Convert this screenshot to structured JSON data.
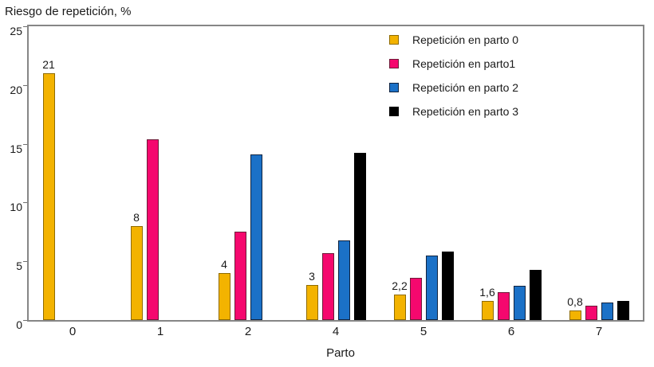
{
  "chart_data": {
    "type": "bar",
    "title": "Riesgo de repetición, %",
    "xlabel": "Parto",
    "ylabel": "Riesgo de repetición, %",
    "ylim": [
      0,
      25
    ],
    "yticks": [
      0,
      5,
      10,
      15,
      20,
      25
    ],
    "grid": false,
    "legend_position": "top-right",
    "categories": [
      "0",
      "1",
      "2",
      "4",
      "5",
      "6",
      "7"
    ],
    "series": [
      {
        "name": "Repetición en parto 0",
        "color": "#F3B300",
        "border": "#8F6B00",
        "values": [
          21,
          8,
          4,
          3,
          2.2,
          1.6,
          0.8
        ],
        "point_labels": [
          "21",
          "8",
          "4",
          "3",
          "2,2",
          "1,6",
          "0,8"
        ]
      },
      {
        "name": "Repetición en parto1",
        "color": "#F5086E",
        "border": "#6E1B38",
        "values": [
          null,
          15.4,
          7.5,
          5.7,
          3.6,
          2.4,
          1.2
        ],
        "point_labels": []
      },
      {
        "name": "Repetición en parto 2",
        "color": "#1B71C7",
        "border": "#10233F",
        "values": [
          null,
          null,
          14.1,
          6.8,
          5.5,
          2.9,
          1.5
        ],
        "point_labels": []
      },
      {
        "name": "Repetición en parto 3",
        "color": "#000000",
        "border": "#000000",
        "values": [
          null,
          null,
          null,
          14.2,
          5.8,
          4.3,
          1.6
        ],
        "point_labels": []
      }
    ]
  }
}
